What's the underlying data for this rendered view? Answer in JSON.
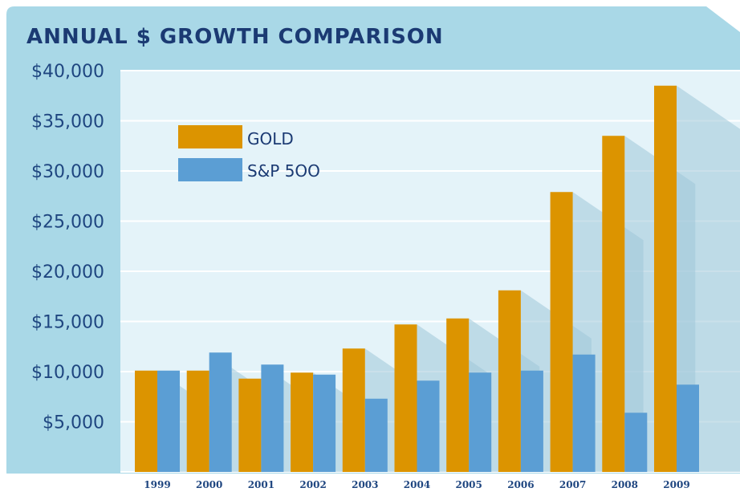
{
  "chart_data": {
    "type": "bar",
    "title": "ANNUAL $ GROWTH COMPARISON",
    "xlabel": "",
    "ylabel": "",
    "categories": [
      "1999",
      "2000",
      "2001",
      "2002",
      "2003",
      "2004",
      "2005",
      "2006",
      "2007",
      "2008",
      "2009"
    ],
    "series": [
      {
        "name": "GOLD",
        "color": "#dc9400",
        "values": [
          10100,
          10100,
          9300,
          9900,
          12300,
          14700,
          15300,
          18100,
          27900,
          33500,
          38500
        ]
      },
      {
        "name": "S&P 5OO",
        "color": "#5b9ed4",
        "values": [
          10100,
          11900,
          10700,
          9700,
          7300,
          9100,
          9900,
          10100,
          11700,
          5900,
          8700
        ]
      }
    ],
    "ylim": [
      0,
      40000
    ],
    "yticks": [
      5000,
      10000,
      15000,
      20000,
      25000,
      30000,
      35000,
      40000
    ],
    "ytick_labels": [
      "$5,000",
      "$10,000",
      "$15,000",
      "$20,000",
      "$25,000",
      "$30,000",
      "$35,000",
      "$40,000"
    ],
    "legend_position": "top-left",
    "grid": true
  },
  "colors": {
    "background_panel": "#a9d8e7",
    "plot_area": "#e4f3f9",
    "title_text": "#1b3a73",
    "axis_text": "#1f4680",
    "shadow": "#9fc7d8"
  }
}
